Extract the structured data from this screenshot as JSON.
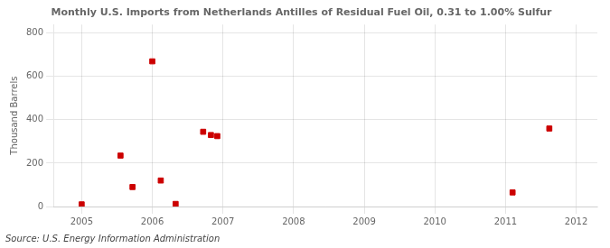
{
  "chart_data": {
    "type": "scatter",
    "title": "Monthly U.S. Imports from Netherlands Antilles of Residual Fuel Oil, 0.31 to 1.00% Sulfur",
    "ylabel": "Thousand Barrels",
    "annotations": [
      "Source: U.S. Energy Information Administration"
    ],
    "x": [
      2005.0,
      2005.55,
      2005.72,
      2006.0,
      2006.12,
      2006.33,
      2006.72,
      2006.83,
      2006.92,
      2011.1,
      2011.62
    ],
    "values": [
      10,
      235,
      90,
      670,
      120,
      12,
      345,
      330,
      325,
      65,
      360
    ],
    "color": "#cc0000",
    "marker": "square",
    "xlim": [
      2004.6,
      2012.3
    ],
    "xticks": [
      2005,
      2006,
      2007,
      2008,
      2009,
      2010,
      2011,
      2012
    ],
    "ylim": [
      0,
      840
    ],
    "yticks": [
      0,
      200,
      400,
      600,
      800
    ],
    "grid": true
  }
}
